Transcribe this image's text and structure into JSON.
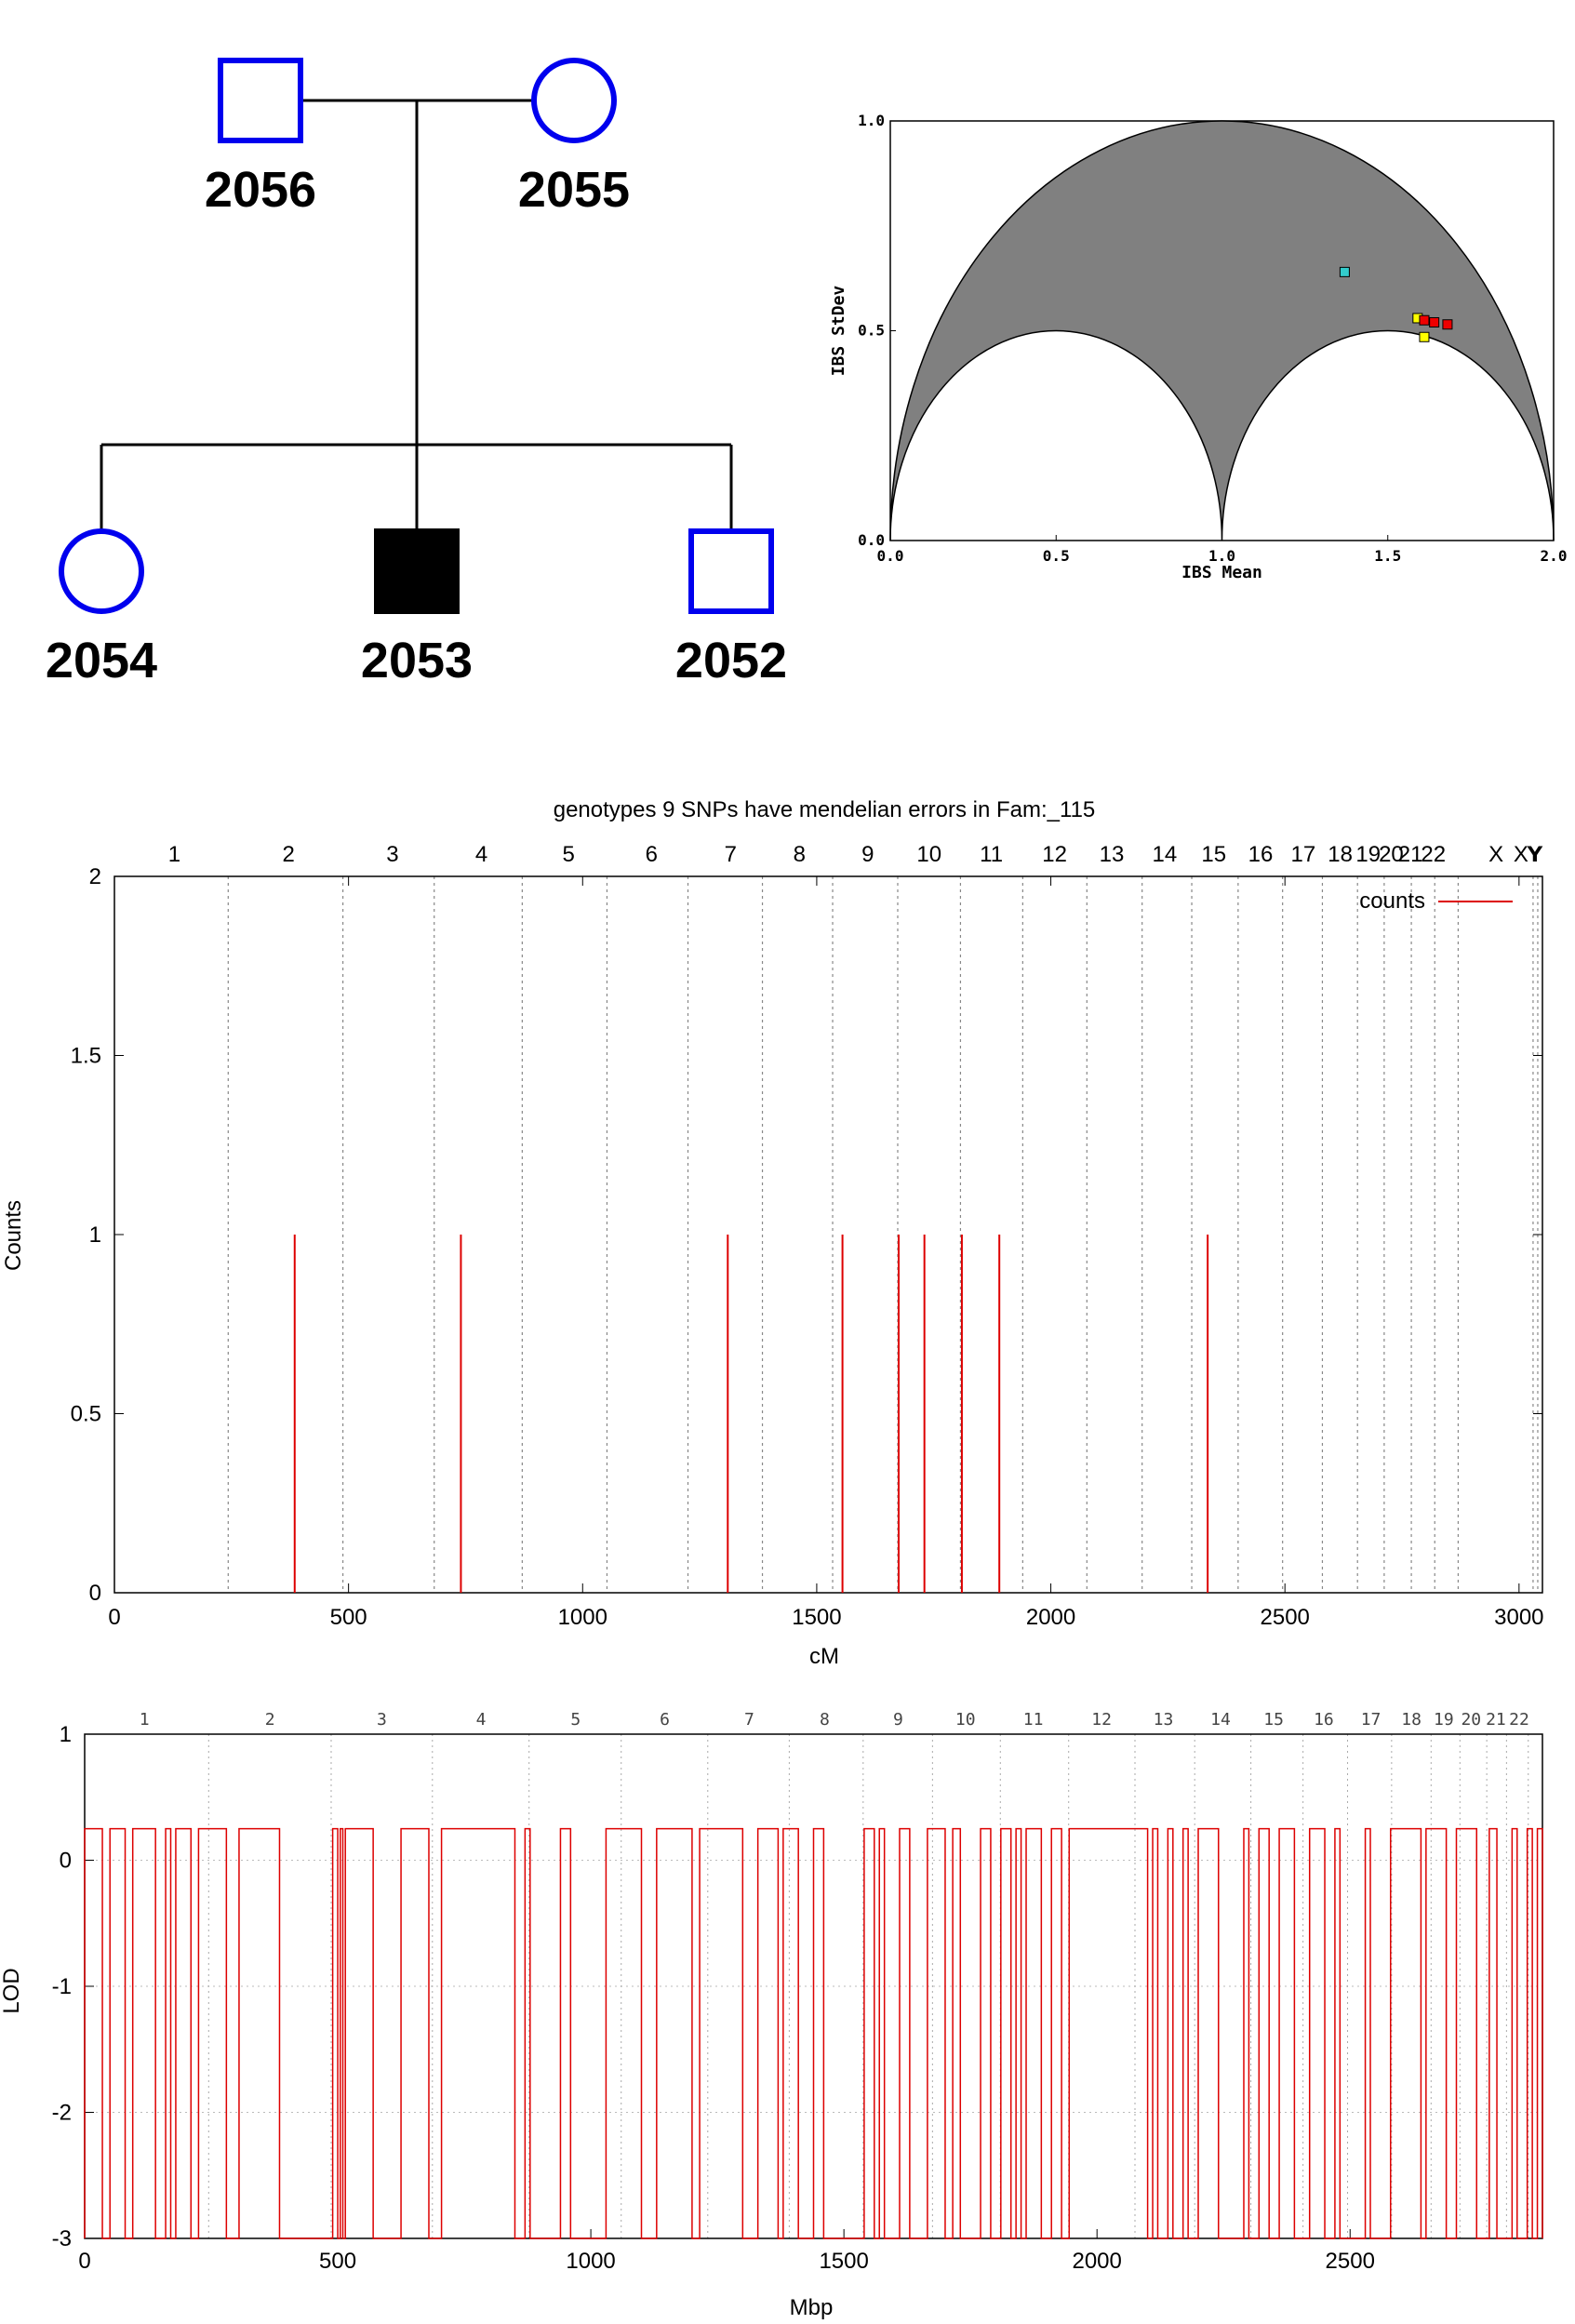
{
  "chart_data": [
    {
      "type": "pedigree",
      "individuals": [
        {
          "id": "2056",
          "sex": "male",
          "affected": false,
          "role": "father"
        },
        {
          "id": "2055",
          "sex": "female",
          "affected": false,
          "role": "mother"
        },
        {
          "id": "2054",
          "sex": "female",
          "affected": false,
          "role": "child"
        },
        {
          "id": "2053",
          "sex": "male",
          "affected": true,
          "role": "child"
        },
        {
          "id": "2052",
          "sex": "male",
          "affected": false,
          "role": "child"
        }
      ],
      "colors": {
        "unaffected_outline": "#0000ee",
        "affected_fill": "#000000"
      }
    },
    {
      "type": "scatter",
      "xlabel": "IBS Mean",
      "ylabel": "IBS StDev",
      "xlim": [
        0,
        2
      ],
      "ylim": [
        0,
        1
      ],
      "xticks": [
        "0.0",
        "0.5",
        "1.0",
        "1.5",
        "2.0"
      ],
      "yticks": [
        "0.0",
        "0.5",
        "1.0"
      ],
      "points": [
        {
          "x": 1.37,
          "y": 0.64,
          "color": "#33cccc"
        },
        {
          "x": 1.59,
          "y": 0.53,
          "color": "#ffff00"
        },
        {
          "x": 1.61,
          "y": 0.525,
          "color": "#ee0000"
        },
        {
          "x": 1.64,
          "y": 0.52,
          "color": "#ee0000"
        },
        {
          "x": 1.68,
          "y": 0.515,
          "color": "#ee0000"
        },
        {
          "x": 1.61,
          "y": 0.485,
          "color": "#ffff00"
        }
      ],
      "region_color": "#808080"
    },
    {
      "type": "bar",
      "title": "genotypes  9 SNPs have mendelian errors in Fam:_115",
      "xlabel": "cM",
      "ylabel": "Counts",
      "xlim": [
        0,
        3050
      ],
      "ylim": [
        0,
        2
      ],
      "xticks": [
        "0",
        "500",
        "1000",
        "1500",
        "2000",
        "2500",
        "3000"
      ],
      "yticks": [
        "0",
        "0.5",
        "1",
        "1.5",
        "2"
      ],
      "legend": "counts",
      "legend_position": "top-right",
      "series_color": "#dd0000",
      "chromosome_labels": [
        "1",
        "2",
        "3",
        "4",
        "5",
        "6",
        "7",
        "8",
        "9",
        "10",
        "11",
        "12",
        "13",
        "14",
        "15",
        "16",
        "17",
        "18",
        "19",
        "20",
        "21",
        "22",
        "X",
        "XY",
        "Y"
      ],
      "chromosome_label_x": [
        128,
        372,
        594,
        784,
        970,
        1147,
        1316,
        1463,
        1609,
        1740,
        1873,
        2008,
        2130,
        2243,
        2348,
        2448,
        2539,
        2618,
        2678,
        2727,
        2768,
        2817,
        2951,
        3020,
        3032
      ],
      "chromosome_boundaries": [
        243,
        488,
        683,
        871,
        1052,
        1225,
        1384,
        1534,
        1673,
        1807,
        1940,
        2077,
        2195,
        2301,
        2400,
        2495,
        2580,
        2655,
        2712,
        2770,
        2820,
        2870,
        3030,
        3040
      ],
      "x": [
        385,
        740,
        1310,
        1555,
        1675,
        1730,
        1810,
        1890,
        2335
      ],
      "values": [
        1,
        1,
        1,
        1,
        1,
        1,
        1,
        1,
        1
      ]
    },
    {
      "type": "line",
      "xlabel": "Mbp",
      "ylabel": "LOD",
      "xlim": [
        0,
        2880
      ],
      "ylim": [
        -3,
        1
      ],
      "xticks": [
        "0",
        "500",
        "1000",
        "1500",
        "2000",
        "2500"
      ],
      "yticks": [
        "-3",
        "-2",
        "-1",
        "0",
        "1"
      ],
      "series_color": "#dd0000",
      "high_value": 0.25,
      "low_value": -3,
      "chromosome_labels": [
        "1",
        "2",
        "3",
        "4",
        "5",
        "6",
        "7",
        "8",
        "9",
        "10",
        "11",
        "12",
        "13",
        "14",
        "15",
        "16",
        "17",
        "18",
        "19",
        "20",
        "21",
        "22"
      ],
      "chromosome_label_x": [
        118,
        366,
        587,
        783,
        970,
        1146,
        1313,
        1462,
        1607,
        1740,
        1874,
        2009,
        2131,
        2244,
        2349,
        2448,
        2541,
        2621,
        2685,
        2739,
        2788,
        2834
      ],
      "chromosome_boundaries": [
        245,
        487,
        687,
        878,
        1060,
        1231,
        1392,
        1538,
        1675,
        1809,
        1944,
        2075,
        2193,
        2304,
        2407,
        2495,
        2582,
        2660,
        2717,
        2770,
        2809,
        2852
      ],
      "high_segments": [
        [
          0,
          35
        ],
        [
          50,
          80
        ],
        [
          95,
          140
        ],
        [
          160,
          170
        ],
        [
          180,
          210
        ],
        [
          225,
          280
        ],
        [
          305,
          385
        ],
        [
          490,
          500
        ],
        [
          505,
          510
        ],
        [
          515,
          570
        ],
        [
          625,
          680
        ],
        [
          705,
          850
        ],
        [
          870,
          880
        ],
        [
          940,
          960
        ],
        [
          1030,
          1100
        ],
        [
          1130,
          1200
        ],
        [
          1215,
          1300
        ],
        [
          1330,
          1370
        ],
        [
          1380,
          1410
        ],
        [
          1440,
          1460
        ],
        [
          1540,
          1560
        ],
        [
          1570,
          1580
        ],
        [
          1610,
          1630
        ],
        [
          1665,
          1700
        ],
        [
          1715,
          1730
        ],
        [
          1770,
          1790
        ],
        [
          1810,
          1830
        ],
        [
          1840,
          1850
        ],
        [
          1860,
          1890
        ],
        [
          1910,
          1930
        ],
        [
          1945,
          2100
        ],
        [
          2110,
          2120
        ],
        [
          2140,
          2150
        ],
        [
          2170,
          2180
        ],
        [
          2200,
          2240
        ],
        [
          2290,
          2300
        ],
        [
          2320,
          2340
        ],
        [
          2360,
          2390
        ],
        [
          2420,
          2450
        ],
        [
          2470,
          2480
        ],
        [
          2530,
          2540
        ],
        [
          2580,
          2640
        ],
        [
          2650,
          2690
        ],
        [
          2710,
          2750
        ],
        [
          2775,
          2790
        ],
        [
          2820,
          2830
        ],
        [
          2850,
          2860
        ],
        [
          2870,
          2880
        ]
      ]
    }
  ]
}
